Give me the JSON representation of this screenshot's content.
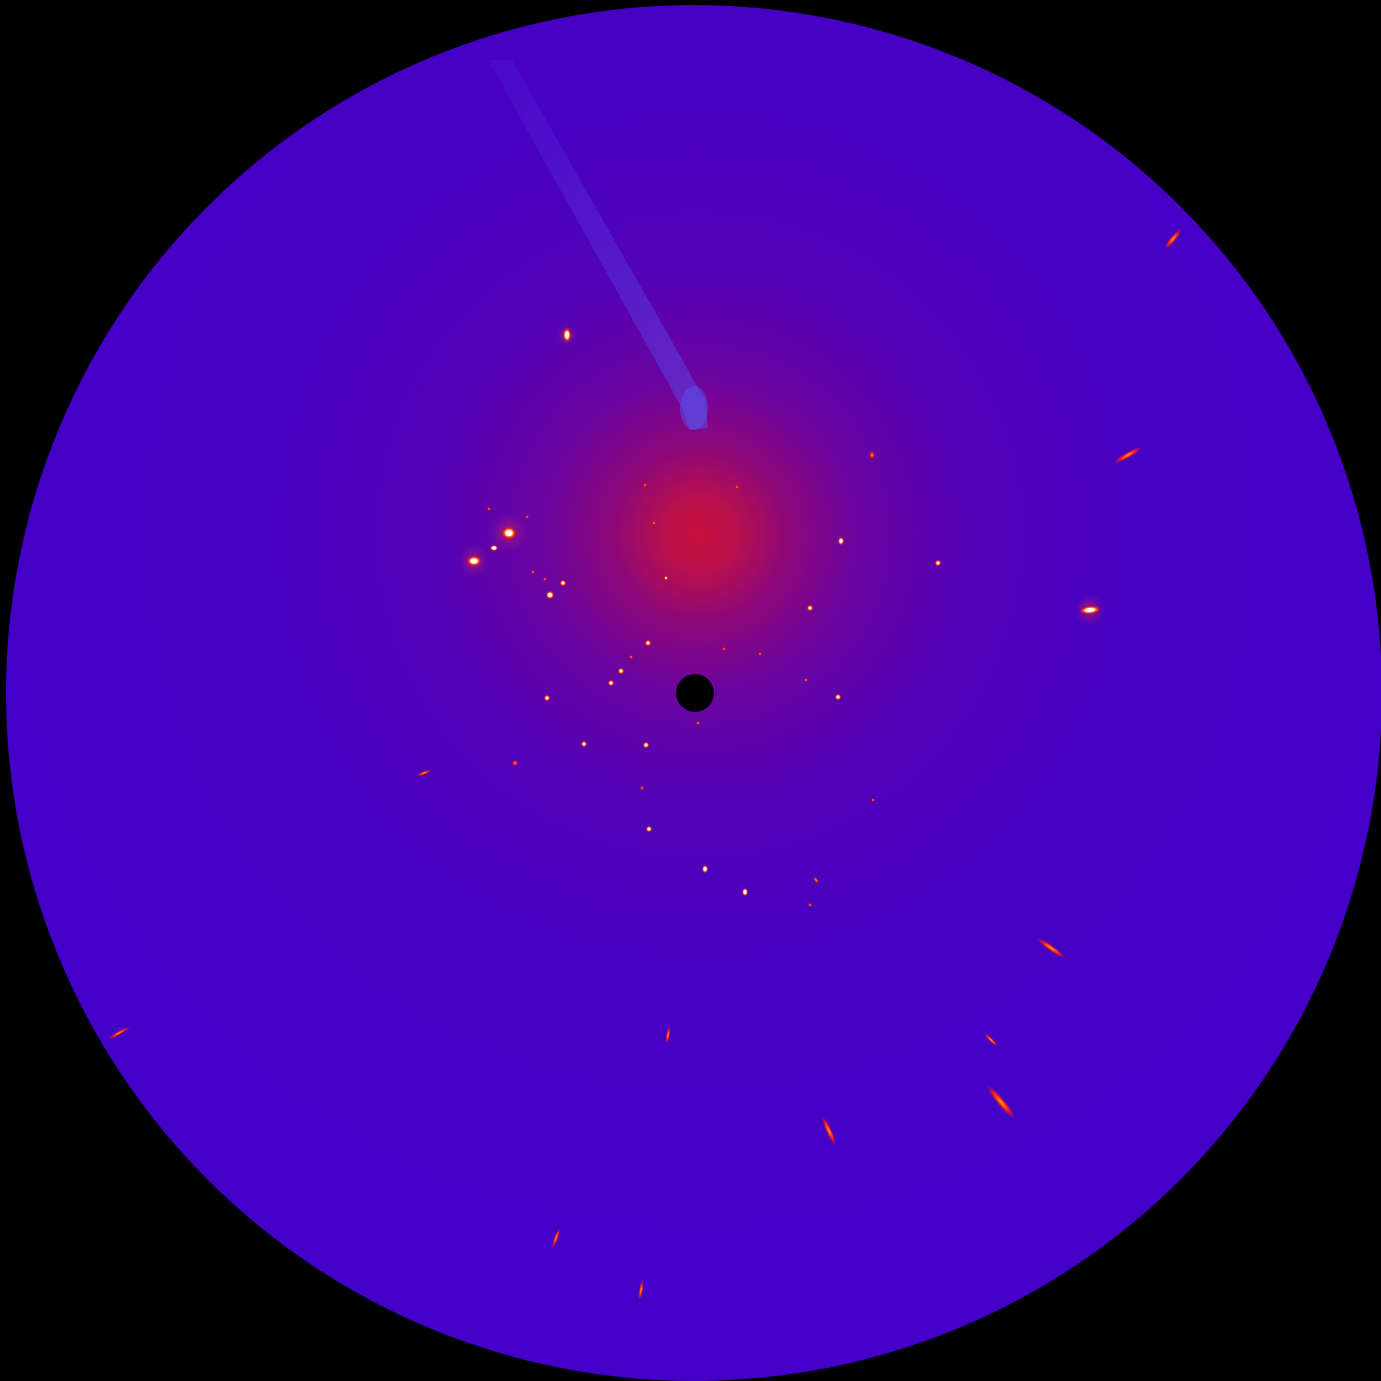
{
  "image": {
    "subject": "",
    "colors": {
      "background": "#000000",
      "detector_field": "#4400c8",
      "glow_core": "#c8103c",
      "spot_hot": "#ff2a10",
      "spot_core": "#ffffff",
      "beamstop": "#000000",
      "shadow": "#5a40e8"
    }
  }
}
